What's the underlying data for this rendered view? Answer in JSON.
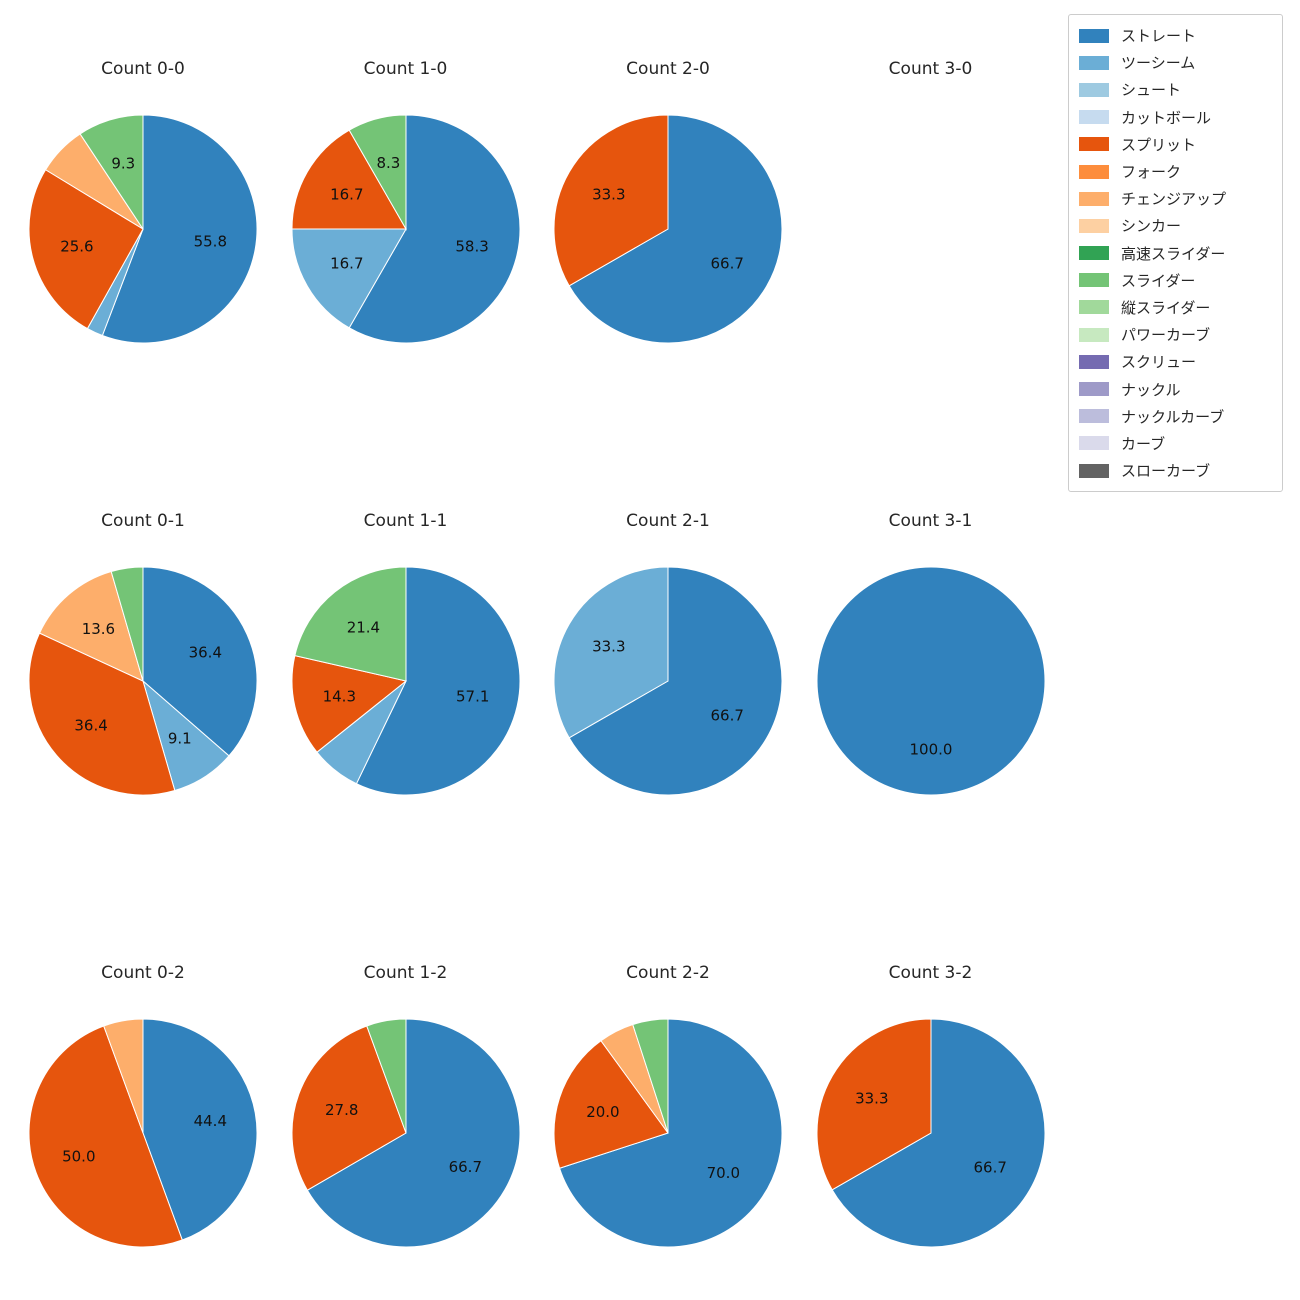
{
  "figure": {
    "background": "#ffffff",
    "title_color": "#262626",
    "label_color": "#111111"
  },
  "legend": {
    "items": [
      {
        "label": "ストレート",
        "color": "#3182bd"
      },
      {
        "label": "ツーシーム",
        "color": "#6baed6"
      },
      {
        "label": "シュート",
        "color": "#9ecae1"
      },
      {
        "label": "カットボール",
        "color": "#c6dbef"
      },
      {
        "label": "スプリット",
        "color": "#e6550d"
      },
      {
        "label": "フォーク",
        "color": "#fd8d3c"
      },
      {
        "label": "チェンジアップ",
        "color": "#fdae6b"
      },
      {
        "label": "シンカー",
        "color": "#fdd0a2"
      },
      {
        "label": "高速スライダー",
        "color": "#31a354"
      },
      {
        "label": "スライダー",
        "color": "#74c476"
      },
      {
        "label": "縦スライダー",
        "color": "#a1d99b"
      },
      {
        "label": "パワーカーブ",
        "color": "#c7e9c0"
      },
      {
        "label": "スクリュー",
        "color": "#756bb1"
      },
      {
        "label": "ナックル",
        "color": "#9e9ac8"
      },
      {
        "label": "ナックルカーブ",
        "color": "#bcbddc"
      },
      {
        "label": "カーブ",
        "color": "#dadaeb"
      },
      {
        "label": "スローカーブ",
        "color": "#636363"
      }
    ]
  },
  "chart_data": {
    "type": "pie",
    "grid": {
      "rows": 3,
      "cols": 4
    },
    "start_angle": 90,
    "clockwise": true,
    "label_threshold": 8,
    "pct_distance": 0.6,
    "charts": [
      {
        "title": "Count 0-0",
        "slices": [
          {
            "label": "ストレート",
            "value": 55.8
          },
          {
            "label": "ツーシーム",
            "value": 2.3
          },
          {
            "label": "スプリット",
            "value": 25.6
          },
          {
            "label": "チェンジアップ",
            "value": 7.0
          },
          {
            "label": "スライダー",
            "value": 9.3
          }
        ]
      },
      {
        "title": "Count 1-0",
        "slices": [
          {
            "label": "ストレート",
            "value": 58.3
          },
          {
            "label": "ツーシーム",
            "value": 16.7
          },
          {
            "label": "スプリット",
            "value": 16.7
          },
          {
            "label": "スライダー",
            "value": 8.3
          }
        ]
      },
      {
        "title": "Count 2-0",
        "slices": [
          {
            "label": "ストレート",
            "value": 66.7
          },
          {
            "label": "スプリット",
            "value": 33.3
          }
        ]
      },
      {
        "title": "Count 3-0",
        "slices": []
      },
      {
        "title": "Count 0-1",
        "slices": [
          {
            "label": "ストレート",
            "value": 36.4
          },
          {
            "label": "ツーシーム",
            "value": 9.1
          },
          {
            "label": "スプリット",
            "value": 36.4
          },
          {
            "label": "チェンジアップ",
            "value": 13.6
          },
          {
            "label": "スライダー",
            "value": 4.5
          }
        ]
      },
      {
        "title": "Count 1-1",
        "slices": [
          {
            "label": "ストレート",
            "value": 57.1
          },
          {
            "label": "ツーシーム",
            "value": 7.1
          },
          {
            "label": "スプリット",
            "value": 14.3
          },
          {
            "label": "スライダー",
            "value": 21.4
          }
        ]
      },
      {
        "title": "Count 2-1",
        "slices": [
          {
            "label": "ストレート",
            "value": 66.7
          },
          {
            "label": "ツーシーム",
            "value": 33.3
          }
        ]
      },
      {
        "title": "Count 3-1",
        "slices": [
          {
            "label": "ストレート",
            "value": 100.0
          }
        ]
      },
      {
        "title": "Count 0-2",
        "slices": [
          {
            "label": "ストレート",
            "value": 44.4
          },
          {
            "label": "スプリット",
            "value": 50.0
          },
          {
            "label": "チェンジアップ",
            "value": 5.6
          }
        ]
      },
      {
        "title": "Count 1-2",
        "slices": [
          {
            "label": "ストレート",
            "value": 66.7
          },
          {
            "label": "スプリット",
            "value": 27.8
          },
          {
            "label": "スライダー",
            "value": 5.6
          }
        ]
      },
      {
        "title": "Count 2-2",
        "slices": [
          {
            "label": "ストレート",
            "value": 70.0
          },
          {
            "label": "スプリット",
            "value": 20.0
          },
          {
            "label": "チェンジアップ",
            "value": 5.0
          },
          {
            "label": "スライダー",
            "value": 5.0
          }
        ]
      },
      {
        "title": "Count 3-2",
        "slices": [
          {
            "label": "ストレート",
            "value": 66.7
          },
          {
            "label": "スプリット",
            "value": 33.3
          }
        ]
      }
    ]
  }
}
